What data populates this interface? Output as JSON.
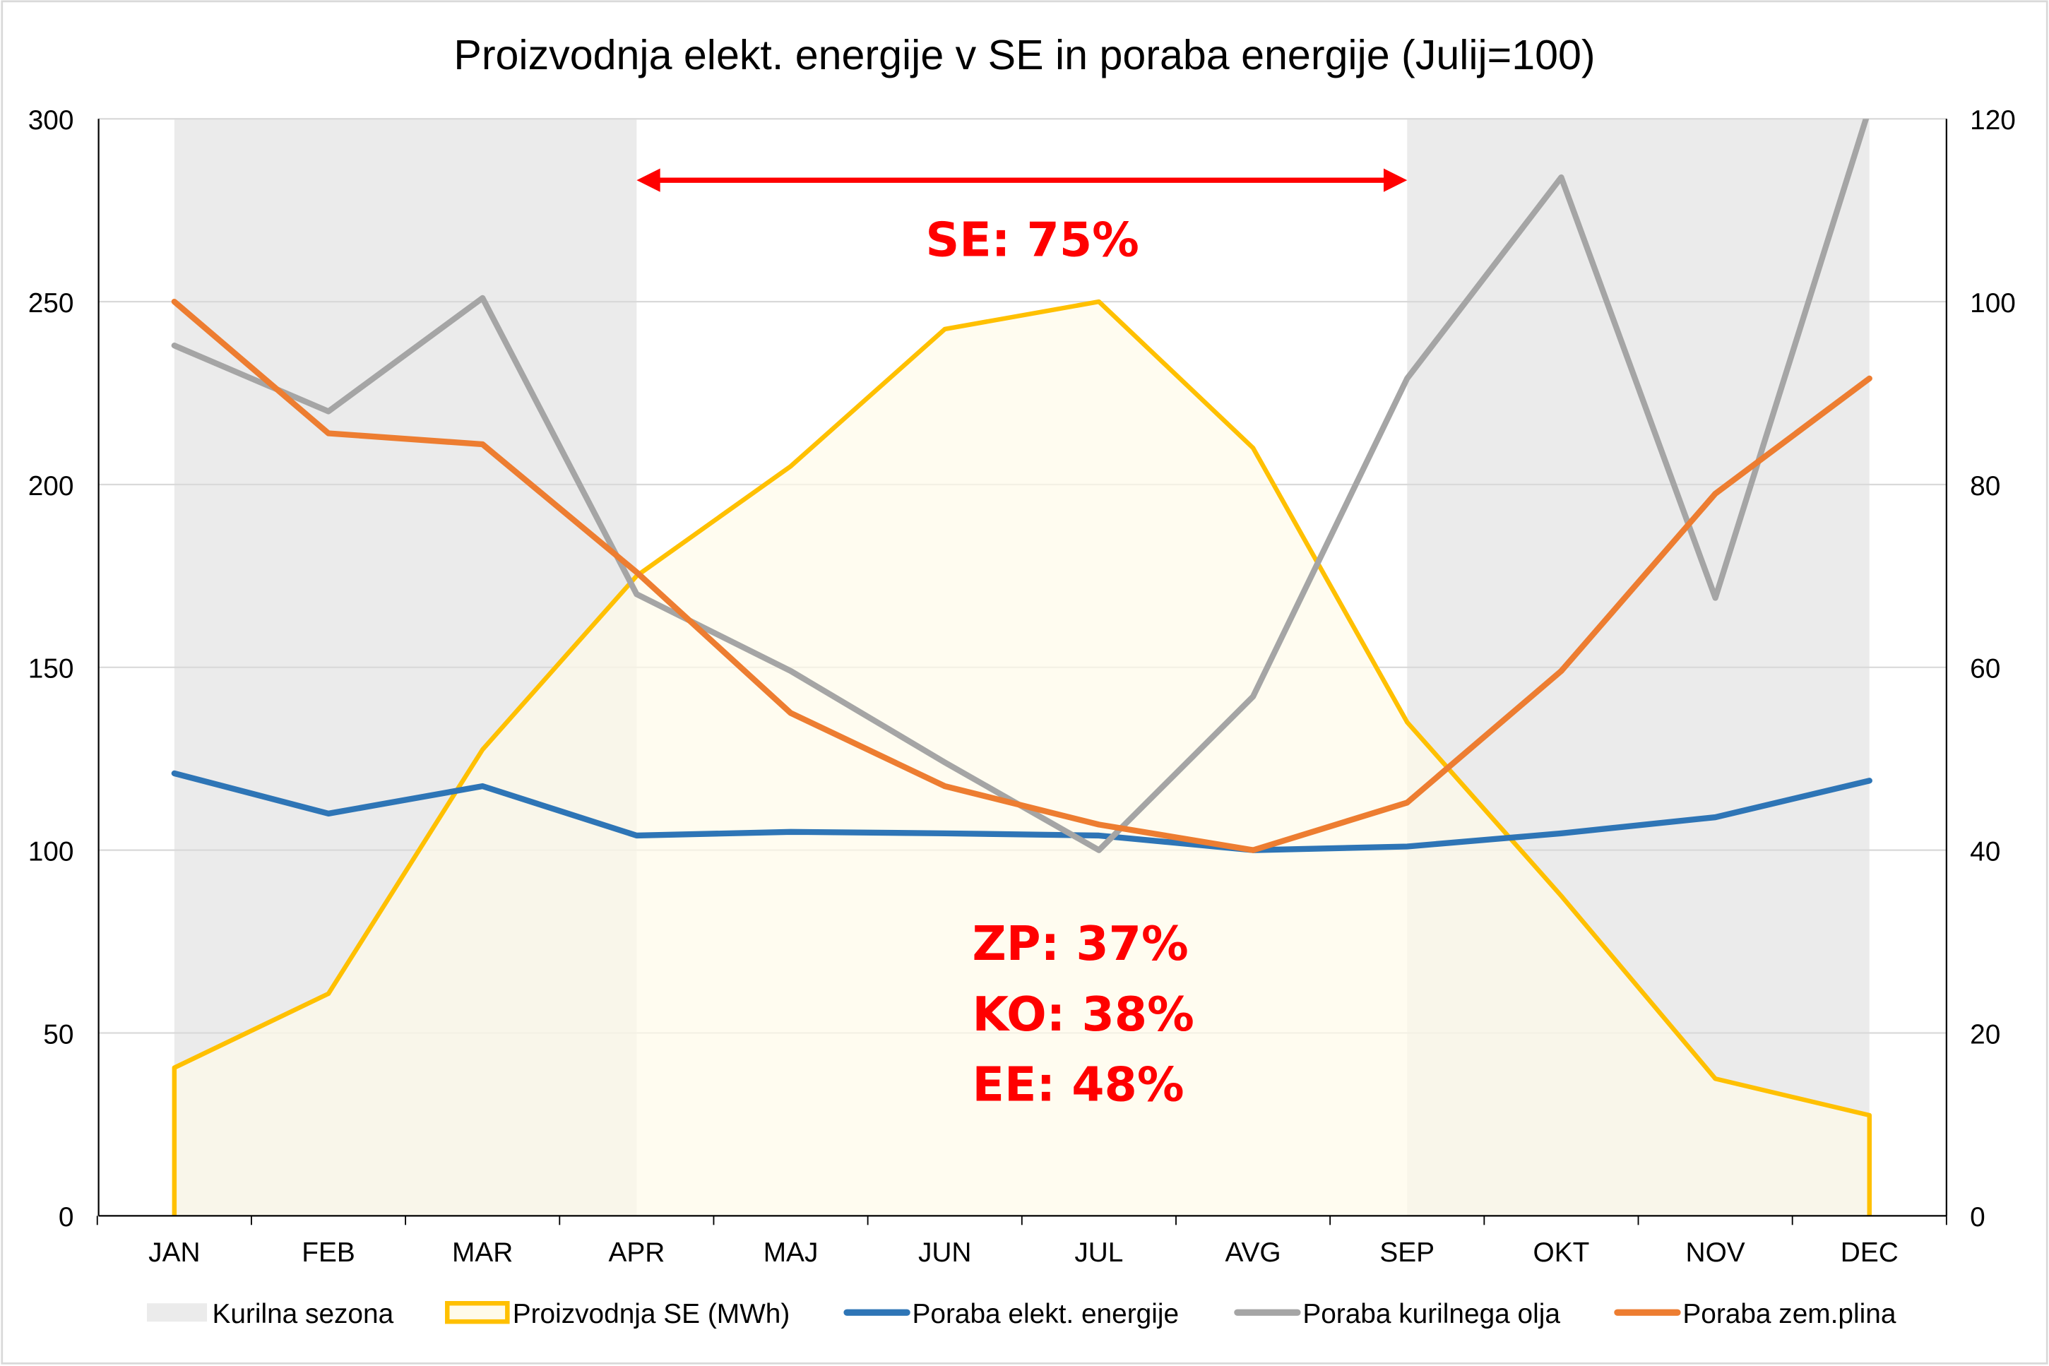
{
  "chart_data": {
    "type": "line",
    "title": "Proizvodnja elekt. energije v SE in poraba energije (Julij=100)",
    "categories": [
      "JAN",
      "FEB",
      "MAR",
      "APR",
      "MAJ",
      "JUN",
      "JUL",
      "AVG",
      "SEP",
      "OKT",
      "NOV",
      "DEC"
    ],
    "left_axis": {
      "range": [
        0,
        300
      ],
      "ticks": [
        "0",
        "50",
        "100",
        "150",
        "200",
        "250",
        "300"
      ]
    },
    "right_axis": {
      "range": [
        0,
        120
      ],
      "ticks": [
        "0",
        "20",
        "40",
        "60",
        "80",
        "100",
        "120"
      ]
    },
    "grid": true,
    "legend_placement": "bottom",
    "heating_season": {
      "name": "Kurilna sezona",
      "color": "#ebebeb",
      "ranges": [
        [
          "JAN",
          "APR"
        ],
        [
          "SEP",
          "DEC"
        ]
      ]
    },
    "series": [
      {
        "name": "Proizvodnja SE (MWh)",
        "type": "area",
        "axis": "right",
        "color": "#ffc000",
        "fill": "#fffbea",
        "values": [
          16.2,
          24.3,
          51,
          70,
          82,
          97,
          100,
          84,
          54,
          35,
          15,
          11
        ]
      },
      {
        "name": "Poraba elekt. energije",
        "type": "line",
        "axis": "left",
        "color": "#2e75b6",
        "values": [
          121,
          110,
          117.5,
          104,
          105,
          104.6,
          104,
          100,
          101,
          104.6,
          109,
          119
        ]
      },
      {
        "name": "Poraba kurilnega olja",
        "type": "line",
        "axis": "left",
        "color": "#a5a5a5",
        "values": [
          238,
          220,
          251,
          170,
          149,
          124,
          100,
          142,
          229,
          284,
          169,
          303
        ]
      },
      {
        "name": "Poraba zem.plina",
        "type": "line",
        "axis": "left",
        "color": "#ed7d31",
        "values": [
          250,
          214,
          211,
          176,
          137.5,
          117.5,
          107,
          100,
          113,
          149,
          197.5,
          229
        ]
      }
    ],
    "annotations": {
      "arrow": {
        "from": "APR",
        "to": "SEP",
        "color": "#ff0000"
      },
      "se": "SE: 75%",
      "zp": "ZP: 37%",
      "ko": "KO: 38%",
      "ee": "EE: 48%"
    }
  }
}
